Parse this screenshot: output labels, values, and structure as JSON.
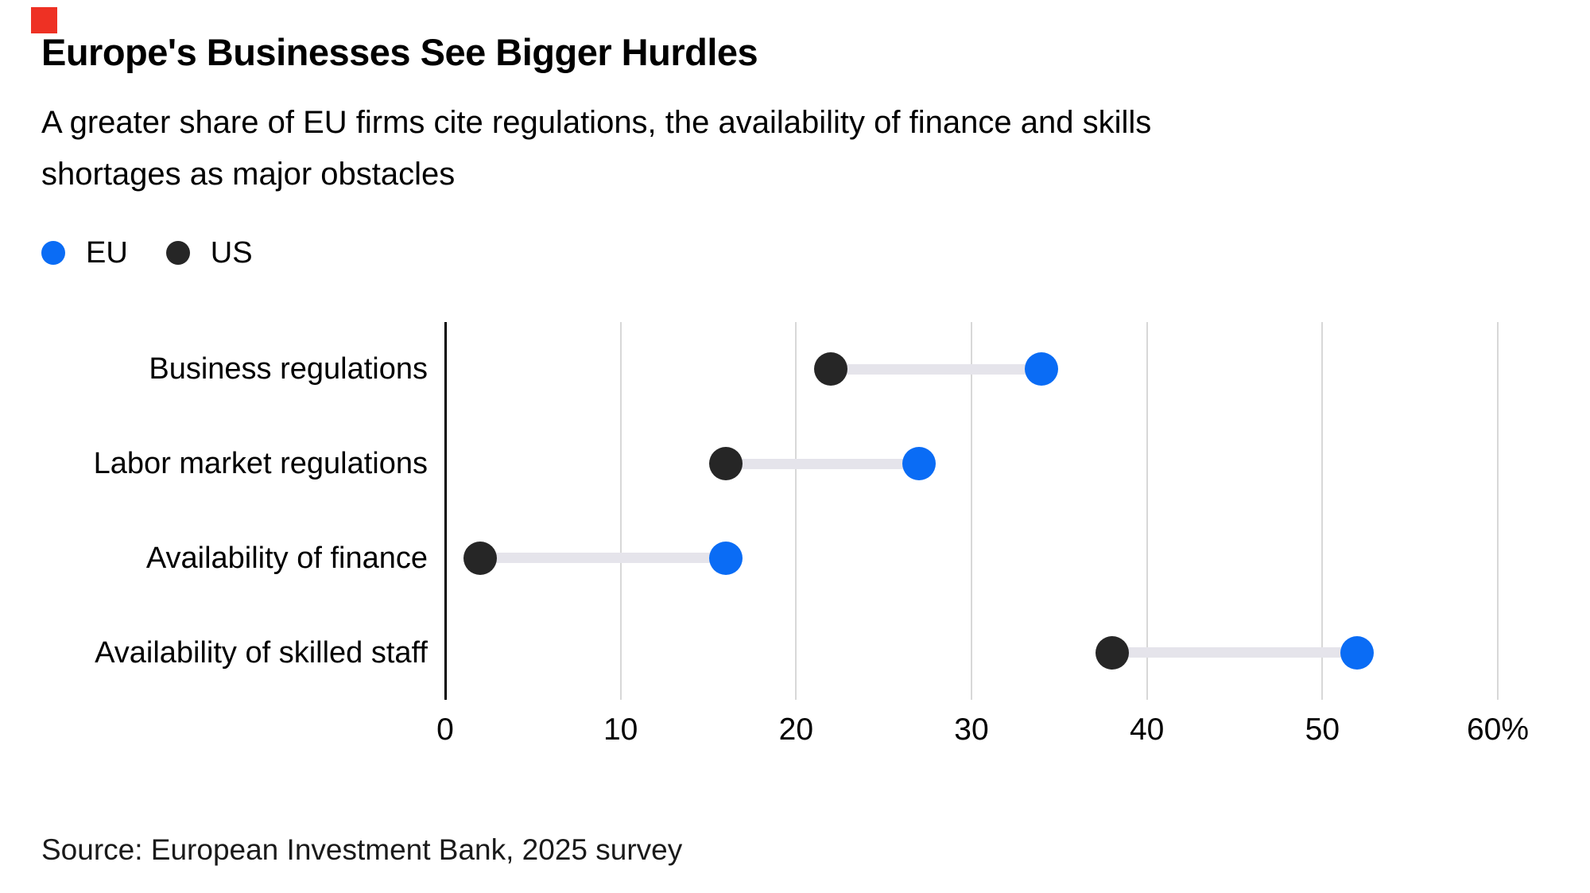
{
  "page": {
    "background": "#ffffff"
  },
  "brand": {
    "mark_color": "#ee3124"
  },
  "header": {
    "title": "Europe's Businesses See Bigger Hurdles",
    "subtitle": "A greater share of EU firms cite regulations, the availability of finance and skills shortages as major obstacles"
  },
  "legend": {
    "items": [
      {
        "label": "EU",
        "color": "#0a6cf5"
      },
      {
        "label": "US",
        "color": "#262626"
      }
    ]
  },
  "chart_data": {
    "type": "scatter",
    "subtype": "dumbbell",
    "orientation": "horizontal",
    "title": "Europe's Businesses See Bigger Hurdles",
    "subtitle": "A greater share of EU firms cite regulations, the availability of finance and skills shortages as major obstacles",
    "categories": [
      "Business regulations",
      "Labor market regulations",
      "Availability of finance",
      "Availability of skilled staff"
    ],
    "series": [
      {
        "name": "EU",
        "color": "#0a6cf5",
        "values": [
          34,
          27,
          16,
          52
        ]
      },
      {
        "name": "US",
        "color": "#262626",
        "values": [
          22,
          16,
          2,
          38
        ]
      }
    ],
    "x_axis": {
      "min": 0,
      "max": 60,
      "unit": "%",
      "tick_values": [
        0,
        10,
        20,
        30,
        40,
        50,
        60
      ],
      "tick_labels": [
        "0",
        "10",
        "20",
        "30",
        "40",
        "50",
        "60%"
      ]
    },
    "ylabel": "",
    "xlabel": "",
    "grid": "vertical",
    "legend_position": "top-left",
    "gridline_color": "#d8d8d8",
    "axis_color": "#000000",
    "connector_color": "#e5e4eb"
  },
  "footer": {
    "source": "Source: European Investment Bank, 2025 survey"
  }
}
